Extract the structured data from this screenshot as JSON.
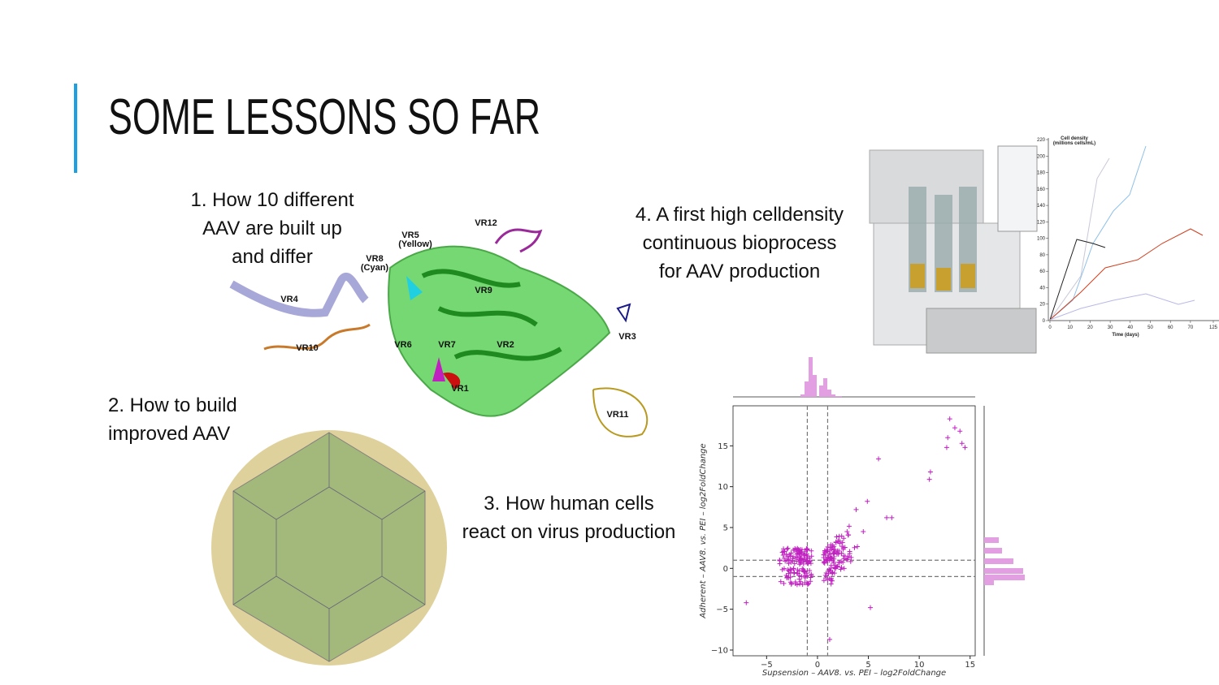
{
  "title": "SOME LESSONS SO FAR",
  "lessons": [
    {
      "lines": [
        "1. How 10 different",
        "AAV are built up",
        "and differ"
      ]
    },
    {
      "lines": [
        "2. How to build",
        "improved AAV"
      ]
    },
    {
      "lines": [
        "3. How human cells",
        "react on virus production"
      ]
    },
    {
      "lines": [
        "4. A first high celldensity",
        "continuous bioprocess",
        "for AAV production"
      ]
    }
  ],
  "protein_labels": [
    "VR12",
    "VR5",
    "(Yellow)",
    "VR8",
    "(Cyan)",
    "VR4",
    "VR9",
    "VR3",
    "VR10",
    "VR6",
    "VR7",
    "VR2",
    "VR1",
    "VR11"
  ],
  "density_chart": {
    "title": "Cell density",
    "subtitle": "(millions cells/mL)",
    "x_label": "Time (days)",
    "xticks": [
      0,
      10,
      20,
      30,
      40,
      50,
      60,
      70,
      125
    ],
    "yticks": [
      0,
      20,
      40,
      60,
      80,
      100,
      120,
      140,
      160,
      180,
      200,
      220
    ]
  },
  "scatter": {
    "x_label": "Supsension – AAV8. vs. PEI – log2FoldChange",
    "y_label": "Adherent – AAV8. vs. PEI – log2FoldChange",
    "xlim": [
      -8.3,
      15.5
    ],
    "ylim": [
      -10.7,
      19.9
    ],
    "xticks": [
      {
        "value": -5,
        "label": "−5"
      },
      0,
      5,
      10,
      15
    ],
    "yticks": [
      {
        "value": -10,
        "label": "−10"
      },
      {
        "value": -5,
        "label": "−5"
      },
      0,
      5,
      10,
      15
    ]
  }
}
